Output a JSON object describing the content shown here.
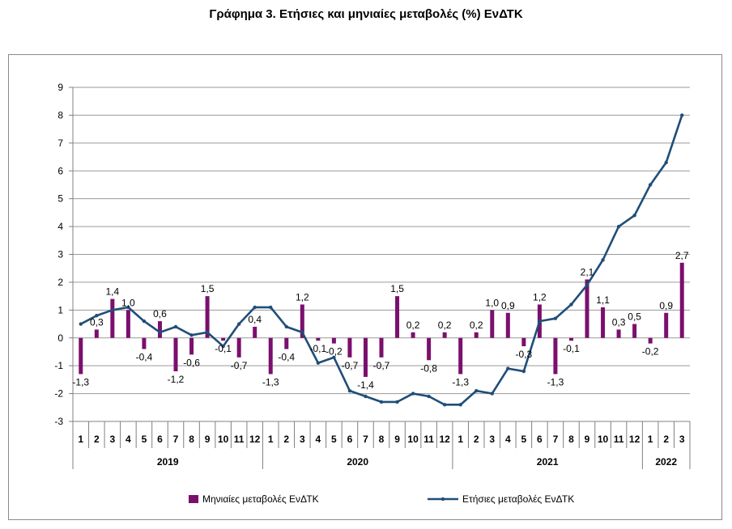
{
  "title": "Γράφημα 3. Ετήσιες και μηνιαίες μεταβολές (%) ΕνΔΤΚ",
  "chart_data": {
    "type": "bar",
    "title": "Γράφημα 3. Ετήσιες και μηνιαίες μεταβολές (%) ΕνΔΤΚ",
    "categories": [
      "1",
      "2",
      "3",
      "4",
      "5",
      "6",
      "7",
      "8",
      "9",
      "10",
      "11",
      "12",
      "1",
      "2",
      "3",
      "4",
      "5",
      "6",
      "7",
      "8",
      "9",
      "10",
      "11",
      "12",
      "1",
      "2",
      "3",
      "4",
      "5",
      "6",
      "7",
      "8",
      "9",
      "10",
      "11",
      "12",
      "1",
      "2",
      "3"
    ],
    "years": [
      {
        "label": "2019",
        "count": 12
      },
      {
        "label": "2020",
        "count": 12
      },
      {
        "label": "2021",
        "count": 12
      },
      {
        "label": "2022",
        "count": 3
      }
    ],
    "ylim": [
      -3,
      9
    ],
    "yticks": [
      -3,
      -2,
      -1,
      0,
      1,
      2,
      3,
      4,
      5,
      6,
      7,
      8,
      9
    ],
    "grid": true,
    "legend_position": "bottom",
    "series": [
      {
        "name": "Μηνιαίες μεταβολές ΕνΔΤΚ",
        "type": "bar",
        "color": "#7b0f6e",
        "values": [
          -1.3,
          0.3,
          1.4,
          1.0,
          -0.4,
          0.6,
          -1.2,
          -0.6,
          1.5,
          -0.1,
          -0.7,
          0.4,
          -1.3,
          -0.4,
          1.2,
          -0.1,
          -0.2,
          -0.7,
          -1.4,
          -0.7,
          1.5,
          0.2,
          -0.8,
          0.2,
          -1.3,
          0.2,
          1.0,
          0.9,
          -0.3,
          1.2,
          -1.3,
          -0.1,
          2.1,
          1.1,
          0.3,
          0.5,
          -0.2,
          0.9,
          2.7
        ],
        "labels": [
          "-1,3",
          "0,3",
          "1,4",
          "1,0",
          "-0,4",
          "0,6",
          "-1,2",
          "-0,6",
          "1,5",
          "-0,1",
          "-0,7",
          "0,4",
          "-1,3",
          "-0,4",
          "1,2",
          "-0,1",
          "-0,2",
          "-0,7",
          "-1,4",
          "-0,7",
          "1,5",
          "0,2",
          "-0,8",
          "0,2",
          "-1,3",
          "0,2",
          "1,0",
          "0,9",
          "-0,3",
          "1,2",
          "-1,3",
          "-0,1",
          "2,1",
          "1,1",
          "0,3",
          "0,5",
          "-0,2",
          "0,9",
          "2,7"
        ]
      },
      {
        "name": "Ετήσιες μεταβολές ΕνΔΤΚ",
        "type": "line",
        "color": "#1f4e79",
        "values": [
          0.5,
          0.8,
          1.0,
          1.1,
          0.6,
          0.2,
          0.4,
          0.1,
          0.2,
          -0.3,
          0.5,
          1.1,
          1.1,
          0.4,
          0.2,
          -0.9,
          -0.7,
          -1.9,
          -2.1,
          -2.3,
          -2.3,
          -2.0,
          -2.1,
          -2.4,
          -2.4,
          -1.9,
          -2.0,
          -1.1,
          -1.2,
          0.6,
          0.7,
          1.2,
          1.9,
          2.8,
          4.0,
          4.4,
          5.5,
          6.3,
          8.0
        ]
      }
    ]
  }
}
